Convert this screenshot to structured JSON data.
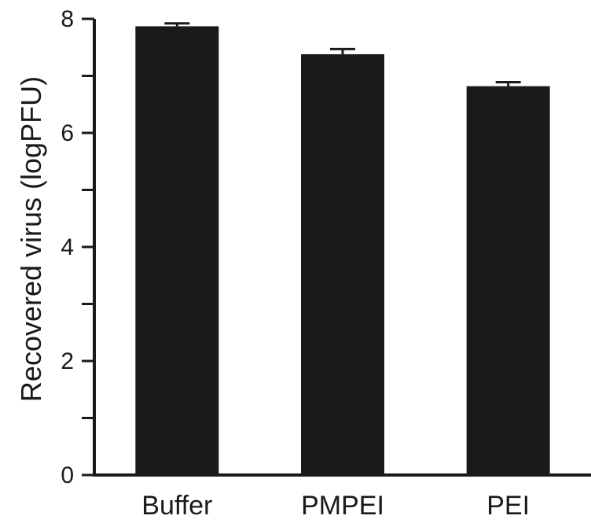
{
  "chart_data": {
    "type": "bar",
    "categories": [
      "Buffer",
      "PMPEI",
      "PEI"
    ],
    "values": [
      7.87,
      7.38,
      6.82
    ],
    "errors": [
      0.05,
      0.09,
      0.07
    ],
    "ylabel": "Recovered virus (logPFU)",
    "xlabel": "",
    "ylim": [
      0,
      8
    ],
    "yticks": [
      0,
      2,
      4,
      6,
      8
    ],
    "yminor_step": 1,
    "grid": false,
    "legend": "none",
    "colors": {
      "bar": "#1a1a1a",
      "axis": "#1a1a1a",
      "background": "#ffffff"
    }
  }
}
